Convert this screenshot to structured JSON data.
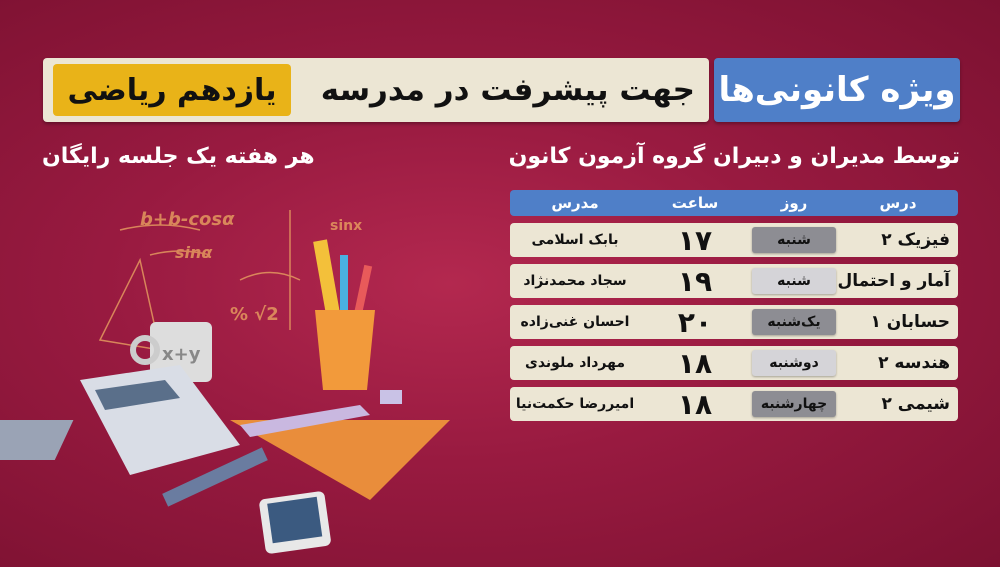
{
  "header": {
    "brand": "ویژه کانونی‌ها",
    "banner": "جهت پیشرفت در مدرسه",
    "grade": "یازدهم ریاضی"
  },
  "subtitles": {
    "right": "توسط مدیران و دبیران گروه آزمون کانون",
    "left": "هر هفته یک جلسه رایگان"
  },
  "table": {
    "columns": [
      "درس",
      "روز",
      "ساعت",
      "مدرس"
    ],
    "rows": [
      {
        "lesson": "فیزیک ۲",
        "day": "شنبه",
        "day_style": "dark",
        "hour": "۱۷",
        "teacher": "بابک اسلامی"
      },
      {
        "lesson": "آمار و احتمال",
        "day": "شنبه",
        "day_style": "light",
        "hour": "۱۹",
        "teacher": "سجاد محمدنژاد"
      },
      {
        "lesson": "حسابان ۱",
        "day": "یک‌شنبه",
        "day_style": "dark",
        "hour": "۲۰",
        "teacher": "احسان غنی‌زاده"
      },
      {
        "lesson": "هندسه ۲",
        "day": "دوشنبه",
        "day_style": "light",
        "hour": "۱۸",
        "teacher": "مهرداد ملوندی"
      },
      {
        "lesson": "شیمی ۲",
        "day": "چهارشنبه",
        "day_style": "dark",
        "hour": "۱۸",
        "teacher": "امیررضا حکمت‌نیا"
      }
    ]
  },
  "colors": {
    "background": "#981a40",
    "accent_blue": "#4f7fc8",
    "accent_yellow": "#e9b318",
    "cream": "#ece6d4"
  }
}
